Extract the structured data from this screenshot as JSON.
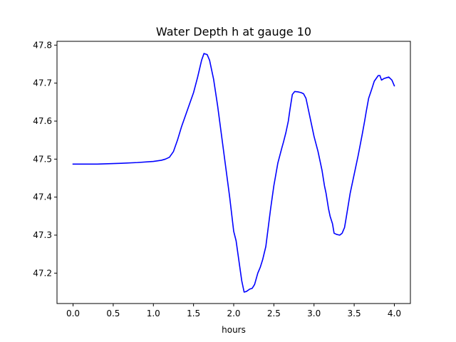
{
  "chart_data": {
    "type": "line",
    "title": "Water Depth h at gauge 10",
    "xlabel": "hours",
    "ylabel": "",
    "xlim": [
      -0.2,
      4.2
    ],
    "ylim": [
      47.12,
      47.81
    ],
    "xticks": [
      0.0,
      0.5,
      1.0,
      1.5,
      2.0,
      2.5,
      3.0,
      3.5,
      4.0
    ],
    "xtick_labels": [
      "0.0",
      "0.5",
      "1.0",
      "1.5",
      "2.0",
      "2.5",
      "3.0",
      "3.5",
      "4.0"
    ],
    "yticks": [
      47.2,
      47.3,
      47.4,
      47.5,
      47.6,
      47.7,
      47.8
    ],
    "ytick_labels": [
      "47.2",
      "47.3",
      "47.4",
      "47.5",
      "47.6",
      "47.7",
      "47.8"
    ],
    "grid": false,
    "series": [
      {
        "color": "#0000ff",
        "x": [
          0.0,
          0.3,
          0.6,
          0.8,
          1.0,
          1.1,
          1.15,
          1.2,
          1.25,
          1.3,
          1.35,
          1.4,
          1.45,
          1.5,
          1.55,
          1.6,
          1.63,
          1.67,
          1.7,
          1.73,
          1.75,
          1.8,
          1.85,
          1.9,
          1.95,
          2.0,
          2.03,
          2.06,
          2.1,
          2.13,
          2.16,
          2.2,
          2.23,
          2.26,
          2.3,
          2.33,
          2.36,
          2.4,
          2.43,
          2.46,
          2.5,
          2.55,
          2.6,
          2.62,
          2.65,
          2.68,
          2.7,
          2.73,
          2.76,
          2.8,
          2.84,
          2.87,
          2.9,
          2.93,
          2.97,
          3.0,
          3.05,
          3.1,
          3.13,
          3.15,
          3.18,
          3.2,
          3.23,
          3.25,
          3.28,
          3.3,
          3.32,
          3.35,
          3.38,
          3.4,
          3.45,
          3.5,
          3.55,
          3.6,
          3.63,
          3.65,
          3.68,
          3.72,
          3.75,
          3.8,
          3.82,
          3.84,
          3.87,
          3.9,
          3.93,
          3.97,
          4.0
        ],
        "y": [
          47.487,
          47.487,
          47.489,
          47.491,
          47.494,
          47.497,
          47.5,
          47.505,
          47.52,
          47.55,
          47.585,
          47.615,
          47.645,
          47.675,
          47.715,
          47.76,
          47.778,
          47.775,
          47.76,
          47.73,
          47.71,
          47.64,
          47.56,
          47.48,
          47.4,
          47.31,
          47.285,
          47.24,
          47.18,
          47.15,
          47.152,
          47.158,
          47.16,
          47.17,
          47.2,
          47.215,
          47.235,
          47.27,
          47.32,
          47.37,
          47.43,
          47.49,
          47.53,
          47.545,
          47.57,
          47.6,
          47.63,
          47.67,
          47.678,
          47.677,
          47.675,
          47.672,
          47.66,
          47.63,
          47.59,
          47.56,
          47.52,
          47.47,
          47.43,
          47.41,
          47.37,
          47.35,
          47.33,
          47.305,
          47.302,
          47.301,
          47.3,
          47.305,
          47.32,
          47.345,
          47.41,
          47.46,
          47.51,
          47.565,
          47.6,
          47.625,
          47.66,
          47.685,
          47.705,
          47.72,
          47.72,
          47.708,
          47.712,
          47.714,
          47.716,
          47.708,
          47.693
        ]
      }
    ]
  }
}
